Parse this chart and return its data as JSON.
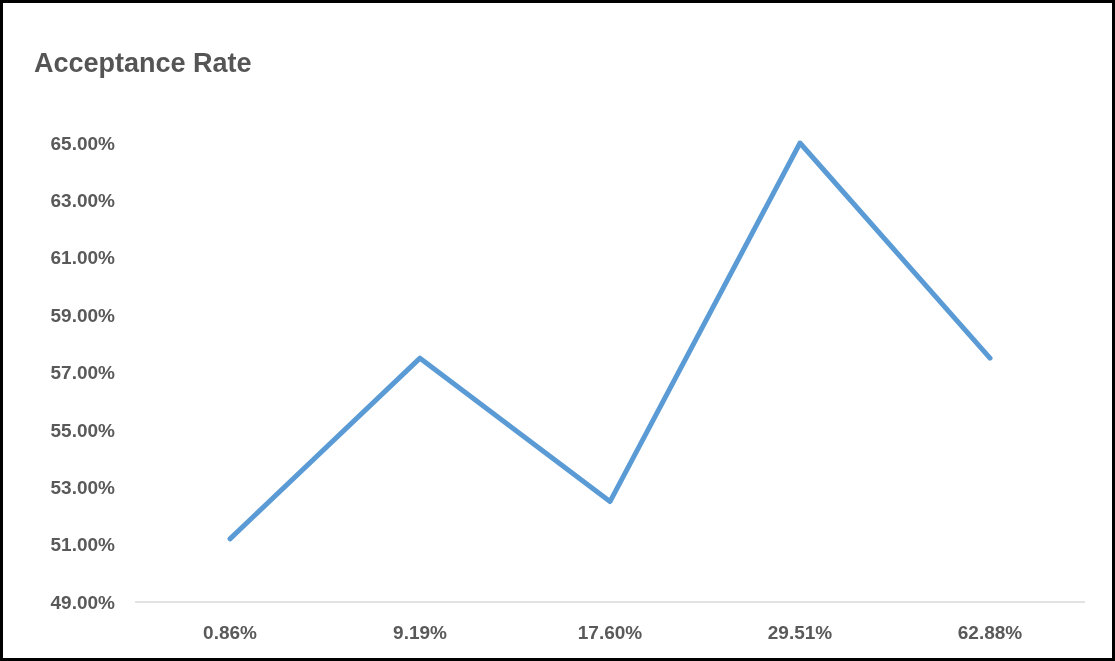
{
  "chart_data": {
    "type": "line",
    "title": "Acceptance Rate",
    "categories": [
      "0.86%",
      "9.19%",
      "17.60%",
      "29.51%",
      "62.88%"
    ],
    "series": [
      {
        "color": "#5b9bd5",
        "values": [
          51.2,
          57.5,
          52.5,
          65.0,
          57.5
        ]
      }
    ],
    "ylim": [
      49,
      65
    ],
    "yticks": [
      {
        "value": 49,
        "label": "49.00%"
      },
      {
        "value": 51,
        "label": "51.00%"
      },
      {
        "value": 53,
        "label": "53.00%"
      },
      {
        "value": 55,
        "label": "55.00%"
      },
      {
        "value": 57,
        "label": "57.00%"
      },
      {
        "value": 59,
        "label": "59.00%"
      },
      {
        "value": 61,
        "label": "61.00%"
      },
      {
        "value": 63,
        "label": "63.00%"
      },
      {
        "value": 65,
        "label": "65.00%"
      }
    ],
    "grid": false,
    "marker": "none",
    "line_style": "solid"
  }
}
